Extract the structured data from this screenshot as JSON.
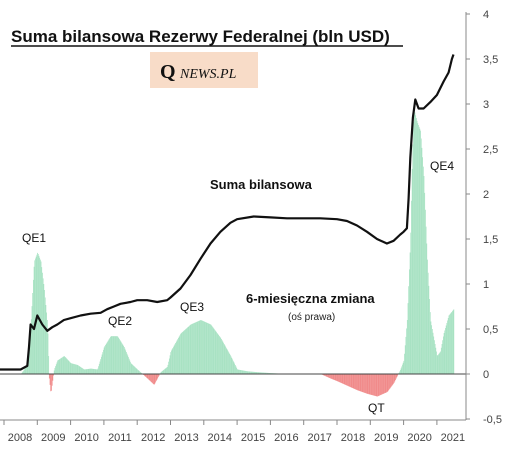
{
  "chart_data": {
    "type": "line",
    "title": "Suma bilansowa Rezerwy Federalnej (bln USD)",
    "x_ticks": [
      "2008",
      "2009",
      "2010",
      "2011",
      "2012",
      "2013",
      "2014",
      "2015",
      "2016",
      "2017",
      "2018",
      "2019",
      "2020",
      "2021"
    ],
    "y_ticks": [
      "-0,5",
      "0",
      "0,5",
      "1",
      "1,5",
      "2",
      "2,5",
      "3",
      "3,5",
      "4"
    ],
    "ylim": [
      -0.5,
      4
    ],
    "grid": false,
    "series": [
      {
        "name": "Suma bilansowa",
        "color": "#111111",
        "points": [
          [
            2007.6,
            0.05
          ],
          [
            2008.0,
            0.05
          ],
          [
            2008.5,
            0.05
          ],
          [
            2008.7,
            0.09
          ],
          [
            2008.75,
            0.3
          ],
          [
            2008.8,
            0.55
          ],
          [
            2008.9,
            0.5
          ],
          [
            2009.0,
            0.65
          ],
          [
            2009.15,
            0.55
          ],
          [
            2009.3,
            0.48
          ],
          [
            2009.45,
            0.52
          ],
          [
            2009.6,
            0.55
          ],
          [
            2009.8,
            0.6
          ],
          [
            2010.0,
            0.62
          ],
          [
            2010.3,
            0.65
          ],
          [
            2010.6,
            0.67
          ],
          [
            2010.9,
            0.68
          ],
          [
            2011.1,
            0.72
          ],
          [
            2011.3,
            0.75
          ],
          [
            2011.5,
            0.78
          ],
          [
            2011.8,
            0.8
          ],
          [
            2012.0,
            0.82
          ],
          [
            2012.3,
            0.82
          ],
          [
            2012.6,
            0.8
          ],
          [
            2012.9,
            0.82
          ],
          [
            2013.0,
            0.85
          ],
          [
            2013.3,
            0.95
          ],
          [
            2013.6,
            1.1
          ],
          [
            2013.9,
            1.28
          ],
          [
            2014.2,
            1.45
          ],
          [
            2014.5,
            1.58
          ],
          [
            2014.8,
            1.68
          ],
          [
            2015.0,
            1.72
          ],
          [
            2015.5,
            1.75
          ],
          [
            2016.0,
            1.74
          ],
          [
            2016.5,
            1.73
          ],
          [
            2017.0,
            1.73
          ],
          [
            2017.5,
            1.73
          ],
          [
            2018.0,
            1.72
          ],
          [
            2018.3,
            1.7
          ],
          [
            2018.6,
            1.65
          ],
          [
            2018.9,
            1.58
          ],
          [
            2019.2,
            1.5
          ],
          [
            2019.5,
            1.45
          ],
          [
            2019.7,
            1.48
          ],
          [
            2019.9,
            1.55
          ],
          [
            2020.0,
            1.58
          ],
          [
            2020.1,
            1.62
          ],
          [
            2020.15,
            1.95
          ],
          [
            2020.2,
            2.4
          ],
          [
            2020.28,
            2.85
          ],
          [
            2020.35,
            3.05
          ],
          [
            2020.45,
            2.95
          ],
          [
            2020.6,
            2.95
          ],
          [
            2020.8,
            3.02
          ],
          [
            2021.0,
            3.1
          ],
          [
            2021.2,
            3.25
          ],
          [
            2021.35,
            3.35
          ],
          [
            2021.45,
            3.5
          ],
          [
            2021.5,
            3.55
          ]
        ]
      },
      {
        "name": "6-miesięczna zmiana",
        "axis": "right",
        "style": "bars",
        "positive_color": "#a8e2c3",
        "negative_color": "#f08a8a",
        "points": [
          [
            2007.6,
            0.0
          ],
          [
            2008.5,
            0.0
          ],
          [
            2008.7,
            0.1
          ],
          [
            2008.8,
            0.55
          ],
          [
            2008.9,
            1.25
          ],
          [
            2009.0,
            1.35
          ],
          [
            2009.1,
            1.25
          ],
          [
            2009.2,
            0.95
          ],
          [
            2009.3,
            0.55
          ],
          [
            2009.35,
            -0.05
          ],
          [
            2009.4,
            -0.22
          ],
          [
            2009.5,
            0.05
          ],
          [
            2009.6,
            0.15
          ],
          [
            2009.8,
            0.2
          ],
          [
            2010.0,
            0.12
          ],
          [
            2010.2,
            0.1
          ],
          [
            2010.4,
            0.05
          ],
          [
            2010.6,
            0.06
          ],
          [
            2010.8,
            0.05
          ],
          [
            2011.0,
            0.3
          ],
          [
            2011.2,
            0.42
          ],
          [
            2011.4,
            0.42
          ],
          [
            2011.6,
            0.3
          ],
          [
            2011.8,
            0.12
          ],
          [
            2012.0,
            0.05
          ],
          [
            2012.3,
            -0.05
          ],
          [
            2012.5,
            -0.12
          ],
          [
            2012.7,
            0.02
          ],
          [
            2012.9,
            0.08
          ],
          [
            2013.0,
            0.25
          ],
          [
            2013.3,
            0.45
          ],
          [
            2013.6,
            0.55
          ],
          [
            2013.9,
            0.6
          ],
          [
            2014.2,
            0.55
          ],
          [
            2014.5,
            0.4
          ],
          [
            2014.8,
            0.2
          ],
          [
            2015.0,
            0.05
          ],
          [
            2015.3,
            0.03
          ],
          [
            2015.6,
            0.02
          ],
          [
            2016.0,
            0.01
          ],
          [
            2016.5,
            0.0
          ],
          [
            2017.0,
            0.0
          ],
          [
            2017.5,
            0.0
          ],
          [
            2017.8,
            -0.05
          ],
          [
            2018.0,
            -0.08
          ],
          [
            2018.3,
            -0.13
          ],
          [
            2018.6,
            -0.18
          ],
          [
            2018.9,
            -0.22
          ],
          [
            2019.2,
            -0.25
          ],
          [
            2019.5,
            -0.2
          ],
          [
            2019.7,
            -0.1
          ],
          [
            2019.9,
            0.05
          ],
          [
            2020.0,
            0.15
          ],
          [
            2020.1,
            0.6
          ],
          [
            2020.2,
            1.5
          ],
          [
            2020.25,
            2.35
          ],
          [
            2020.3,
            2.95
          ],
          [
            2020.4,
            2.8
          ],
          [
            2020.5,
            2.7
          ],
          [
            2020.6,
            2.2
          ],
          [
            2020.7,
            1.3
          ],
          [
            2020.8,
            0.6
          ],
          [
            2021.0,
            0.2
          ],
          [
            2021.1,
            0.25
          ],
          [
            2021.2,
            0.45
          ],
          [
            2021.35,
            0.65
          ],
          [
            2021.5,
            0.72
          ]
        ]
      }
    ],
    "annotations": {
      "qe1": "QE1",
      "qe2": "QE2",
      "qe3": "QE3",
      "qe4": "QE4",
      "qt": "QT",
      "balance_label": "Suma bilansowa",
      "change_label": "6-miesięczna zmiana",
      "change_sub": "(oś prawa)"
    }
  },
  "logo": {
    "q": "Q",
    "text": "NEWS.PL",
    "bg": "#f8dcc8"
  }
}
